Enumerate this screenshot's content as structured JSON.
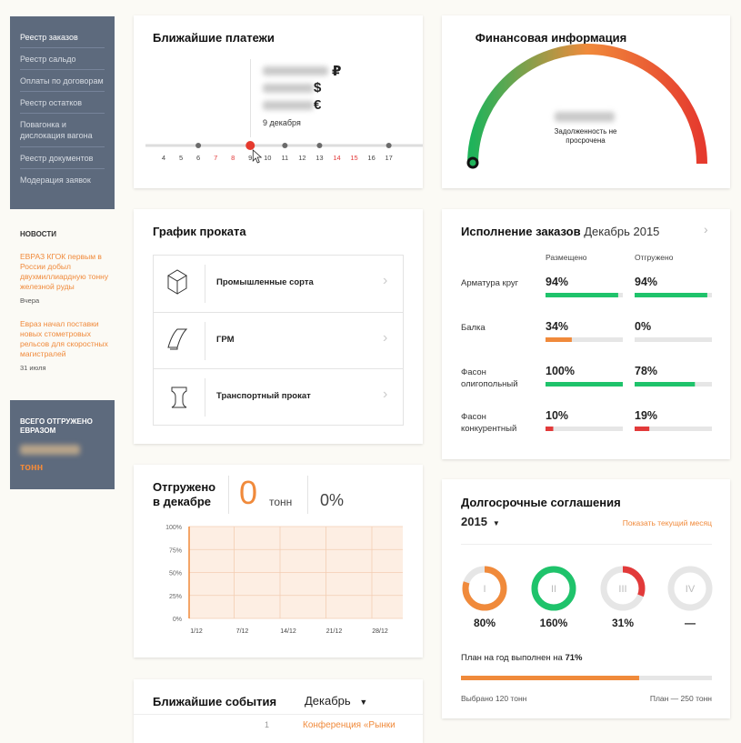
{
  "sidebar": {
    "menu": [
      "Реестр заказов",
      "Реестр сальдо",
      "Оплаты по договорам",
      "Реестр остатков",
      "Повагонка и дислокация вагона",
      "Реестр документов",
      "Модерация заявок"
    ]
  },
  "news": {
    "title": "НОВОСТИ",
    "items": [
      {
        "text": "ЕВРАЗ КГОК первым в России добыл двухмиллиардную тонну железной руды",
        "date": "Вчера"
      },
      {
        "text": "Евраз начал поставки новых стометровых рельсов для скоростных магистралей",
        "date": "31 июля"
      }
    ]
  },
  "total_shipped": {
    "title": "ВСЕГО ОТГРУЖЕНО ЕВРАЗОМ",
    "unit": "тонн"
  },
  "payments": {
    "title": "Ближайшие платежи",
    "currencies": [
      "₽",
      "$",
      "€"
    ],
    "date": "9 декабря",
    "days": [
      4,
      5,
      6,
      7,
      8,
      9,
      10,
      11,
      12,
      13,
      14,
      15,
      16,
      17
    ],
    "weekend_days": [
      7,
      8,
      14,
      15
    ],
    "event_days": [
      6,
      9,
      11,
      13,
      17
    ],
    "selected_day": 9
  },
  "finance": {
    "title": "Финансовая информация",
    "caption": "Задолженность не просрочена"
  },
  "rolling": {
    "title": "График проката",
    "items": [
      "Промышленные сорта",
      "ГРМ",
      "Транспортный прокат"
    ]
  },
  "orders": {
    "title": "Исполнение заказов",
    "period": "Декабрь 2015",
    "columns": [
      "Размещено",
      "Отгружено"
    ],
    "rows": [
      {
        "name": "Арматура круг",
        "values": [
          94,
          94
        ],
        "value_labels": [
          "94%",
          "94%"
        ],
        "colors": [
          "#1fc36b",
          "#1fc36b"
        ]
      },
      {
        "name": "Балка",
        "values": [
          34,
          0
        ],
        "value_labels": [
          "34%",
          "0%"
        ],
        "colors": [
          "#f08a3b",
          "#e23a3a"
        ]
      },
      {
        "name": "Фасон олигопольный",
        "values": [
          100,
          78
        ],
        "value_labels": [
          "100%",
          "78%"
        ],
        "colors": [
          "#1fc36b",
          "#1fc36b"
        ]
      },
      {
        "name": "Фасон конкурентный",
        "values": [
          10,
          19
        ],
        "value_labels": [
          "10%",
          "19%"
        ],
        "colors": [
          "#e23a3a",
          "#e23a3a"
        ]
      }
    ]
  },
  "monthly": {
    "title": "Отгружено в декабре",
    "value": 0,
    "unit": "тонн",
    "share": 0,
    "share_label": "0%",
    "chart": {
      "type": "area",
      "xticks": [
        "1/12",
        "7/12",
        "14/12",
        "21/12",
        "28/12"
      ],
      "ylim": [
        0,
        100
      ],
      "yticks": [
        {
          "value": 0,
          "label": "0%"
        },
        {
          "value": 25,
          "label": "25%"
        },
        {
          "value": 50,
          "label": "50%"
        },
        {
          "value": 75,
          "label": "75%"
        },
        {
          "value": 100,
          "label": "100%"
        }
      ],
      "grid": true
    }
  },
  "events": {
    "title": "Ближайшие события",
    "month": "Декабрь",
    "items": [
      {
        "day": 1,
        "text": "Конференция «Рынки"
      }
    ]
  },
  "agreements": {
    "title": "Долгосрочные соглашения",
    "year": "2015",
    "link": "Показать текущий месяц",
    "quarters": [
      {
        "label": "I",
        "value": 80,
        "value_label": "80%",
        "color": "#f08a3b"
      },
      {
        "label": "II",
        "value": 160,
        "value_label": "160%",
        "color": "#1fc36b"
      },
      {
        "label": "III",
        "value": 31,
        "value_label": "31%",
        "color": "#e23a3a"
      },
      {
        "label": "IV",
        "value": null,
        "value_label": "—",
        "color": "#e6e6e6"
      }
    ],
    "plan_text": "План на год выполнен на",
    "plan_value": 71,
    "plan_label": "71%",
    "selected": "Выбрано 120 тонн",
    "plan_total": "План — 250 тонн"
  }
}
